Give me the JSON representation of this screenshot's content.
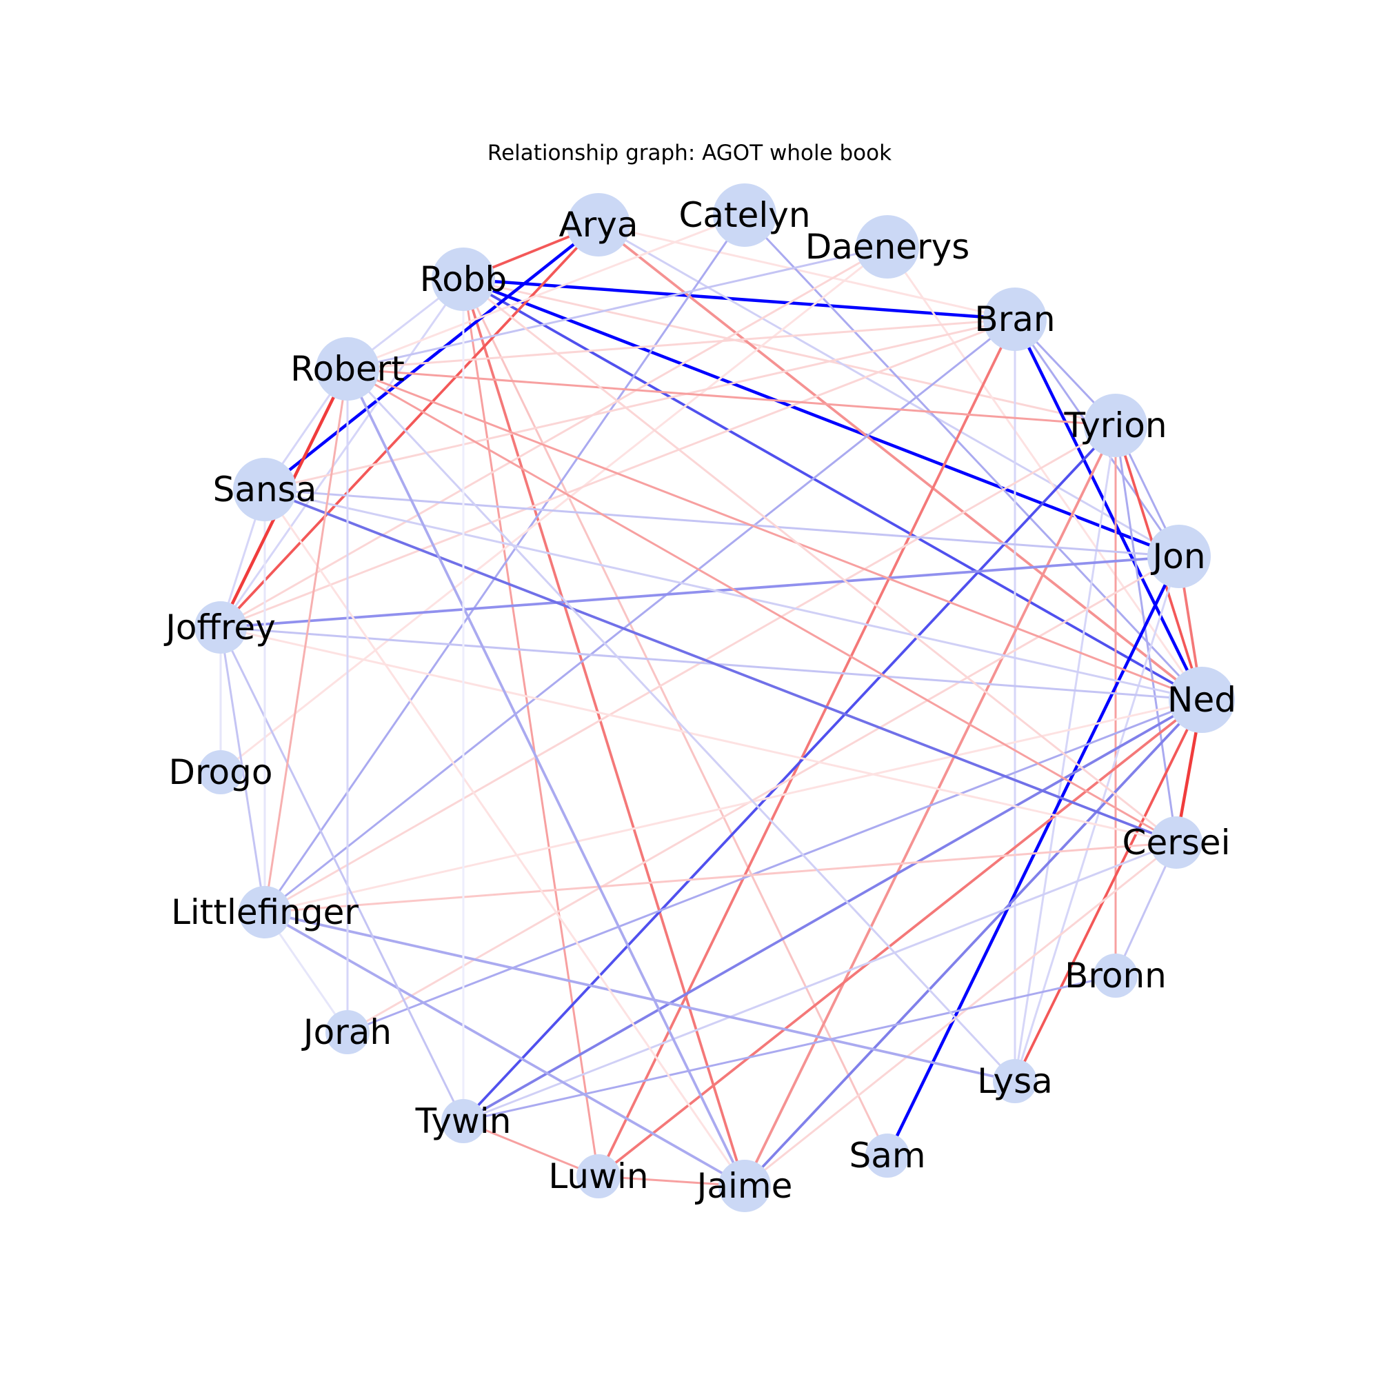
{
  "title": "Relationship graph: AGOT whole book",
  "colors": {
    "node_fill": "#cbd8f5",
    "strong_positive": "#0000ff",
    "strong_negative": "#f03c3c",
    "label": "#000000"
  },
  "nodes": [
    {
      "id": "Arya",
      "label": "Arya",
      "size": "large"
    },
    {
      "id": "Catelyn",
      "label": "Catelyn",
      "size": "large"
    },
    {
      "id": "Daenerys",
      "label": "Daenerys",
      "size": "large"
    },
    {
      "id": "Bran",
      "label": "Bran",
      "size": "large"
    },
    {
      "id": "Tyrion",
      "label": "Tyrion",
      "size": "large"
    },
    {
      "id": "Jon",
      "label": "Jon",
      "size": "large"
    },
    {
      "id": "Ned",
      "label": "Ned",
      "size": "xlarge"
    },
    {
      "id": "Cersei",
      "label": "Cersei",
      "size": "medium"
    },
    {
      "id": "Bronn",
      "label": "Bronn",
      "size": "small"
    },
    {
      "id": "Lysa",
      "label": "Lysa",
      "size": "small"
    },
    {
      "id": "Sam",
      "label": "Sam",
      "size": "small"
    },
    {
      "id": "Jaime",
      "label": "Jaime",
      "size": "medium"
    },
    {
      "id": "Luwin",
      "label": "Luwin",
      "size": "small"
    },
    {
      "id": "Tywin",
      "label": "Tywin",
      "size": "small"
    },
    {
      "id": "Jorah",
      "label": "Jorah",
      "size": "small"
    },
    {
      "id": "Littlefinger",
      "label": "Littlefinger",
      "size": "medium"
    },
    {
      "id": "Drogo",
      "label": "Drogo",
      "size": "small"
    },
    {
      "id": "Joffrey",
      "label": "Joffrey",
      "size": "medium"
    },
    {
      "id": "Sansa",
      "label": "Sansa",
      "size": "large"
    },
    {
      "id": "Robert",
      "label": "Robert",
      "size": "large"
    },
    {
      "id": "Robb",
      "label": "Robb",
      "size": "large"
    }
  ],
  "edges": [
    {
      "source": "Robb",
      "target": "Bran",
      "color": "#0000ff",
      "weight": 3
    },
    {
      "source": "Robb",
      "target": "Jon",
      "color": "#0000ff",
      "weight": 3
    },
    {
      "source": "Robb",
      "target": "Ned",
      "color": "#5050ee",
      "weight": 2.5
    },
    {
      "source": "Robb",
      "target": "Arya",
      "color": "#f35858",
      "weight": 2.5
    },
    {
      "source": "Robb",
      "target": "Jaime",
      "color": "#f47878",
      "weight": 2.5
    },
    {
      "source": "Robb",
      "target": "Luwin",
      "color": "#f7a0a0",
      "weight": 2
    },
    {
      "source": "Robb",
      "target": "Sam",
      "color": "#f9c4c4",
      "weight": 2
    },
    {
      "source": "Robb",
      "target": "Tyrion",
      "color": "#fbd6d6",
      "weight": 2
    },
    {
      "source": "Robb",
      "target": "Robert",
      "color": "#d6d6f8",
      "weight": 2
    },
    {
      "source": "Robb",
      "target": "Joffrey",
      "color": "#d6d6f8",
      "weight": 2
    },
    {
      "source": "Arya",
      "target": "Sansa",
      "color": "#0000ff",
      "weight": 3
    },
    {
      "source": "Arya",
      "target": "Joffrey",
      "color": "#f35858",
      "weight": 2.5
    },
    {
      "source": "Arya",
      "target": "Ned",
      "color": "#f59292",
      "weight": 2.5
    },
    {
      "source": "Arya",
      "target": "Bran",
      "color": "#fde2e2",
      "weight": 2
    },
    {
      "source": "Arya",
      "target": "Jon",
      "color": "#d0d0f6",
      "weight": 2
    },
    {
      "source": "Catelyn",
      "target": "Littlefinger",
      "color": "#aaaaf0",
      "weight": 2
    },
    {
      "source": "Catelyn",
      "target": "Ned",
      "color": "#aaaaf0",
      "weight": 2
    },
    {
      "source": "Catelyn",
      "target": "Robert",
      "color": "#fde2e2",
      "weight": 2
    },
    {
      "source": "Daenerys",
      "target": "Robert",
      "color": "#c4c4f4",
      "weight": 2
    },
    {
      "source": "Daenerys",
      "target": "Joffrey",
      "color": "#fbd6d6",
      "weight": 2
    },
    {
      "source": "Daenerys",
      "target": "Drogo",
      "color": "#fde2e2",
      "weight": 2
    },
    {
      "source": "Daenerys",
      "target": "Ned",
      "color": "#fde2e2",
      "weight": 2
    },
    {
      "source": "Bran",
      "target": "Ned",
      "color": "#0000ff",
      "weight": 3
    },
    {
      "source": "Bran",
      "target": "Luwin",
      "color": "#f47878",
      "weight": 2.5
    },
    {
      "source": "Bran",
      "target": "Littlefinger",
      "color": "#aaaaf0",
      "weight": 2
    },
    {
      "source": "Bran",
      "target": "Sansa",
      "color": "#fbd6d6",
      "weight": 2
    },
    {
      "source": "Bran",
      "target": "Robert",
      "color": "#fbd6d6",
      "weight": 2
    },
    {
      "source": "Bran",
      "target": "Joffrey",
      "color": "#fbd6d6",
      "weight": 2
    },
    {
      "source": "Bran",
      "target": "Tyrion",
      "color": "#aaaaf0",
      "weight": 2
    },
    {
      "source": "Bran",
      "target": "Lysa",
      "color": "#d6d6f8",
      "weight": 2
    },
    {
      "source": "Bran",
      "target": "Jon",
      "color": "#aaaaf0",
      "weight": 2
    },
    {
      "source": "Tyrion",
      "target": "Ned",
      "color": "#f35858",
      "weight": 2.5
    },
    {
      "source": "Tyrion",
      "target": "Tywin",
      "color": "#5050ee",
      "weight": 2.5
    },
    {
      "source": "Tyrion",
      "target": "Jaime",
      "color": "#f59292",
      "weight": 2.5
    },
    {
      "source": "Tyrion",
      "target": "Robert",
      "color": "#f7a0a0",
      "weight": 2
    },
    {
      "source": "Tyrion",
      "target": "Bronn",
      "color": "#f7a0a0",
      "weight": 2
    },
    {
      "source": "Tyrion",
      "target": "Cersei",
      "color": "#aaaaf0",
      "weight": 2
    },
    {
      "source": "Tyrion",
      "target": "Lysa",
      "color": "#d6d6f8",
      "weight": 2
    },
    {
      "source": "Tyrion",
      "target": "Jon",
      "color": "#aaaaf0",
      "weight": 2
    },
    {
      "source": "Tyrion",
      "target": "Littlefinger",
      "color": "#fbd6d6",
      "weight": 2
    },
    {
      "source": "Jon",
      "target": "Sam",
      "color": "#0000ff",
      "weight": 3
    },
    {
      "source": "Jon",
      "target": "Joffrey",
      "color": "#9090ee",
      "weight": 2.5
    },
    {
      "source": "Jon",
      "target": "Sansa",
      "color": "#c4c4f4",
      "weight": 2
    },
    {
      "source": "Jon",
      "target": "Ned",
      "color": "#f47878",
      "weight": 2.5
    },
    {
      "source": "Jon",
      "target": "Jorah",
      "color": "#fbd6d6",
      "weight": 2
    },
    {
      "source": "Jon",
      "target": "Lysa",
      "color": "#d6d6f8",
      "weight": 2
    },
    {
      "source": "Ned",
      "target": "Cersei",
      "color": "#f03c3c",
      "weight": 3
    },
    {
      "source": "Ned",
      "target": "Robert",
      "color": "#f7a0a0",
      "weight": 2
    },
    {
      "source": "Ned",
      "target": "Tywin",
      "color": "#8080ea",
      "weight": 2.5
    },
    {
      "source": "Ned",
      "target": "Luwin",
      "color": "#f47878",
      "weight": 2.5
    },
    {
      "source": "Ned",
      "target": "Jaime",
      "color": "#8080ea",
      "weight": 2.5
    },
    {
      "source": "Ned",
      "target": "Lysa",
      "color": "#f35858",
      "weight": 2.5
    },
    {
      "source": "Ned",
      "target": "Joffrey",
      "color": "#c4c4f4",
      "weight": 2
    },
    {
      "source": "Ned",
      "target": "Sansa",
      "color": "#d0d0f6",
      "weight": 2
    },
    {
      "source": "Ned",
      "target": "Jorah",
      "color": "#aaaaf0",
      "weight": 2
    },
    {
      "source": "Ned",
      "target": "Littlefinger",
      "color": "#fde2e2",
      "weight": 2
    },
    {
      "source": "Cersei",
      "target": "Sansa",
      "color": "#7070e8",
      "weight": 2.5
    },
    {
      "source": "Cersei",
      "target": "Robert",
      "color": "#f7a0a0",
      "weight": 2
    },
    {
      "source": "Cersei",
      "target": "Littlefinger",
      "color": "#fbc8c8",
      "weight": 2
    },
    {
      "source": "Cersei",
      "target": "Jaime",
      "color": "#fbd6d6",
      "weight": 2
    },
    {
      "source": "Cersei",
      "target": "Tywin",
      "color": "#d0d0f6",
      "weight": 2
    },
    {
      "source": "Cersei",
      "target": "Bronn",
      "color": "#c4c4f4",
      "weight": 2
    },
    {
      "source": "Cersei",
      "target": "Joffrey",
      "color": "#fde2e2",
      "weight": 2
    },
    {
      "source": "Cersei",
      "target": "Robb",
      "color": "#fbd6d6",
      "weight": 2
    },
    {
      "source": "Bronn",
      "target": "Tywin",
      "color": "#aaaaf0",
      "weight": 2
    },
    {
      "source": "Lysa",
      "target": "Littlefinger",
      "color": "#aaaaf0",
      "weight": 2.5
    },
    {
      "source": "Lysa",
      "target": "Robert",
      "color": "#d0d0f6",
      "weight": 2
    },
    {
      "source": "Jaime",
      "target": "Robert",
      "color": "#aaaaf0",
      "weight": 2.5
    },
    {
      "source": "Jaime",
      "target": "Littlefinger",
      "color": "#aaaaf0",
      "weight": 2.5
    },
    {
      "source": "Jaime",
      "target": "Luwin",
      "color": "#f7a0a0",
      "weight": 2
    },
    {
      "source": "Jaime",
      "target": "Sansa",
      "color": "#fde2e2",
      "weight": 2
    },
    {
      "source": "Luwin",
      "target": "Tywin",
      "color": "#f7a0a0",
      "weight": 2
    },
    {
      "source": "Tywin",
      "target": "Joffrey",
      "color": "#c4c4f4",
      "weight": 2
    },
    {
      "source": "Tywin",
      "target": "Robb",
      "color": "#eeeefc",
      "weight": 2
    },
    {
      "source": "Jorah",
      "target": "Robert",
      "color": "#d6d6f8",
      "weight": 2
    },
    {
      "source": "Jorah",
      "target": "Littlefinger",
      "color": "#e6e6fa",
      "weight": 2
    },
    {
      "source": "Littlefinger",
      "target": "Robert",
      "color": "#f7b0b0",
      "weight": 2
    },
    {
      "source": "Littlefinger",
      "target": "Joffrey",
      "color": "#c4c4f4",
      "weight": 2
    },
    {
      "source": "Littlefinger",
      "target": "Sansa",
      "color": "#e6e6fa",
      "weight": 2
    },
    {
      "source": "Joffrey",
      "target": "Robert",
      "color": "#f03c3c",
      "weight": 3
    },
    {
      "source": "Joffrey",
      "target": "Sansa",
      "color": "#d6d6f8",
      "weight": 2
    },
    {
      "source": "Joffrey",
      "target": "Drogo",
      "color": "#e6e6fa",
      "weight": 2
    },
    {
      "source": "Robert",
      "target": "Sansa",
      "color": "#d6d6f8",
      "weight": 2
    }
  ]
}
